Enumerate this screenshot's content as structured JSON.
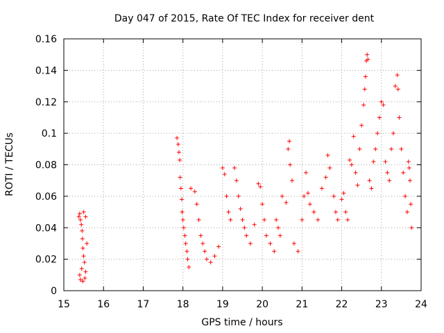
{
  "chart_data": {
    "type": "scatter",
    "title": "Day 047 of 2015, Rate Of TEC Index for receiver dent",
    "xlabel": "GPS time / hours",
    "ylabel": "ROTI / TECUs",
    "xlim": [
      15,
      24
    ],
    "ylim": [
      0,
      0.16
    ],
    "xticks": [
      15,
      16,
      17,
      18,
      19,
      20,
      21,
      22,
      23,
      24
    ],
    "yticks": [
      0,
      0.02,
      0.04,
      0.06,
      0.08,
      0.1,
      0.12,
      0.14,
      0.16
    ],
    "xtick_labels": [
      "15",
      "16",
      "17",
      "18",
      "19",
      "20",
      "21",
      "22",
      "23",
      "24"
    ],
    "ytick_labels": [
      "0",
      "0.02",
      "0.04",
      "0.06",
      "0.08",
      "0.1",
      "0.12",
      "0.14",
      "0.16"
    ],
    "grid": true,
    "marker": "plus",
    "color": "#ff0000",
    "series": [
      {
        "points": [
          [
            15.38,
            0.047
          ],
          [
            15.4,
            0.049
          ],
          [
            15.42,
            0.045
          ],
          [
            15.44,
            0.042
          ],
          [
            15.46,
            0.038
          ],
          [
            15.47,
            0.033
          ],
          [
            15.48,
            0.027
          ],
          [
            15.5,
            0.022
          ],
          [
            15.52,
            0.018
          ],
          [
            15.45,
            0.014
          ],
          [
            15.4,
            0.01
          ],
          [
            15.42,
            0.007
          ],
          [
            15.48,
            0.006
          ],
          [
            15.53,
            0.008
          ],
          [
            15.55,
            0.012
          ],
          [
            15.5,
            0.05
          ],
          [
            15.55,
            0.047
          ],
          [
            15.58,
            0.03
          ],
          [
            17.85,
            0.097
          ],
          [
            17.88,
            0.093
          ],
          [
            17.9,
            0.088
          ],
          [
            17.92,
            0.083
          ],
          [
            17.93,
            0.072
          ],
          [
            17.95,
            0.065
          ],
          [
            17.97,
            0.058
          ],
          [
            17.98,
            0.05
          ],
          [
            18.0,
            0.045
          ],
          [
            18.02,
            0.04
          ],
          [
            18.05,
            0.035
          ],
          [
            18.07,
            0.03
          ],
          [
            18.1,
            0.025
          ],
          [
            18.12,
            0.02
          ],
          [
            18.15,
            0.015
          ],
          [
            18.2,
            0.065
          ],
          [
            18.3,
            0.063
          ],
          [
            18.35,
            0.055
          ],
          [
            18.4,
            0.045
          ],
          [
            18.45,
            0.035
          ],
          [
            18.5,
            0.03
          ],
          [
            18.55,
            0.025
          ],
          [
            18.6,
            0.02
          ],
          [
            18.7,
            0.018
          ],
          [
            18.8,
            0.022
          ],
          [
            18.9,
            0.028
          ],
          [
            19.0,
            0.078
          ],
          [
            19.05,
            0.074
          ],
          [
            19.1,
            0.06
          ],
          [
            19.15,
            0.05
          ],
          [
            19.2,
            0.045
          ],
          [
            19.3,
            0.078
          ],
          [
            19.35,
            0.07
          ],
          [
            19.4,
            0.06
          ],
          [
            19.45,
            0.052
          ],
          [
            19.5,
            0.045
          ],
          [
            19.55,
            0.04
          ],
          [
            19.6,
            0.035
          ],
          [
            19.7,
            0.03
          ],
          [
            19.8,
            0.042
          ],
          [
            19.9,
            0.068
          ],
          [
            19.95,
            0.066
          ],
          [
            20.0,
            0.055
          ],
          [
            20.05,
            0.045
          ],
          [
            20.1,
            0.035
          ],
          [
            20.2,
            0.03
          ],
          [
            20.3,
            0.025
          ],
          [
            20.35,
            0.045
          ],
          [
            20.4,
            0.04
          ],
          [
            20.45,
            0.035
          ],
          [
            20.5,
            0.06
          ],
          [
            20.6,
            0.056
          ],
          [
            20.65,
            0.09
          ],
          [
            20.68,
            0.095
          ],
          [
            20.7,
            0.08
          ],
          [
            20.75,
            0.07
          ],
          [
            20.8,
            0.03
          ],
          [
            20.9,
            0.025
          ],
          [
            21.0,
            0.045
          ],
          [
            21.05,
            0.06
          ],
          [
            21.1,
            0.075
          ],
          [
            21.15,
            0.062
          ],
          [
            21.2,
            0.055
          ],
          [
            21.3,
            0.05
          ],
          [
            21.4,
            0.045
          ],
          [
            21.5,
            0.065
          ],
          [
            21.6,
            0.072
          ],
          [
            21.65,
            0.086
          ],
          [
            21.7,
            0.078
          ],
          [
            21.8,
            0.06
          ],
          [
            21.85,
            0.05
          ],
          [
            21.9,
            0.045
          ],
          [
            22.0,
            0.058
          ],
          [
            22.05,
            0.062
          ],
          [
            22.1,
            0.05
          ],
          [
            22.15,
            0.045
          ],
          [
            22.2,
            0.083
          ],
          [
            22.25,
            0.08
          ],
          [
            22.3,
            0.098
          ],
          [
            22.35,
            0.075
          ],
          [
            22.4,
            0.067
          ],
          [
            22.45,
            0.09
          ],
          [
            22.5,
            0.105
          ],
          [
            22.55,
            0.118
          ],
          [
            22.58,
            0.128
          ],
          [
            22.6,
            0.136
          ],
          [
            22.62,
            0.146
          ],
          [
            22.64,
            0.15
          ],
          [
            22.66,
            0.147
          ],
          [
            22.7,
            0.07
          ],
          [
            22.75,
            0.065
          ],
          [
            22.8,
            0.082
          ],
          [
            22.85,
            0.09
          ],
          [
            22.9,
            0.1
          ],
          [
            22.95,
            0.11
          ],
          [
            23.0,
            0.12
          ],
          [
            23.05,
            0.118
          ],
          [
            23.1,
            0.082
          ],
          [
            23.15,
            0.075
          ],
          [
            23.2,
            0.07
          ],
          [
            23.25,
            0.09
          ],
          [
            23.3,
            0.1
          ],
          [
            23.35,
            0.13
          ],
          [
            23.4,
            0.137
          ],
          [
            23.42,
            0.128
          ],
          [
            23.45,
            0.11
          ],
          [
            23.5,
            0.09
          ],
          [
            23.55,
            0.075
          ],
          [
            23.6,
            0.06
          ],
          [
            23.65,
            0.05
          ],
          [
            23.68,
            0.082
          ],
          [
            23.7,
            0.078
          ],
          [
            23.72,
            0.07
          ],
          [
            23.74,
            0.055
          ],
          [
            23.76,
            0.04
          ]
        ]
      }
    ]
  }
}
